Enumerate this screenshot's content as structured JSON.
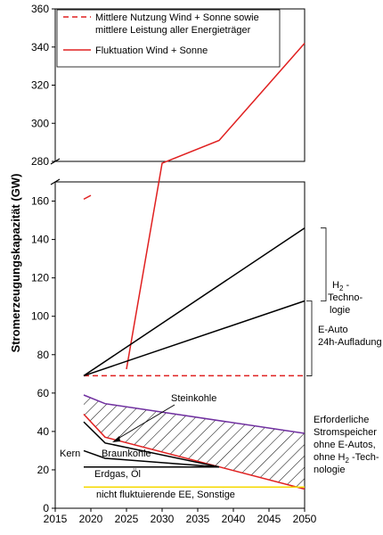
{
  "chart_data": {
    "type": "line",
    "xlabel": "",
    "ylabel": "Stromerzeugungskapazität  (GW)",
    "xlim": [
      2015,
      2050
    ],
    "x_ticks": [
      "2015",
      "2020",
      "2025",
      "2030",
      "2035",
      "2040",
      "2045",
      "2050"
    ],
    "ylim_lower": [
      0,
      170
    ],
    "ylim_upper": [
      280,
      360
    ],
    "y_ticks_lower": [
      "0",
      "20",
      "40",
      "60",
      "80",
      "100",
      "120",
      "140",
      "160"
    ],
    "y_ticks_upper": [
      "280",
      "300",
      "320",
      "340",
      "360"
    ],
    "axis_break": true,
    "grid": false,
    "legend_position": "top-left",
    "legend": [
      {
        "label_line1": "Mittlere Nutzung Wind + Sonne sowie",
        "label_line2": "mittlere Leistung aller Energieträger",
        "style": "dashed",
        "color": "#e02020"
      },
      {
        "label_line1": "Fluktuation Wind + Sonne",
        "label_line2": "",
        "style": "solid",
        "color": "#e02020"
      }
    ],
    "series": [
      {
        "name": "Fluktuation Wind + Sonne",
        "color": "#e02020",
        "style": "solid",
        "width": 1.5,
        "points": [
          [
            2019,
            161
          ],
          [
            2020,
            163
          ],
          [
            2025,
            171
          ],
          [
            2030,
            279
          ],
          [
            2038,
            291
          ],
          [
            2050,
            342
          ]
        ]
      },
      {
        "name": "Mittlere Nutzung Wind + Sonne sowie mittlere Leistung aller Energieträger",
        "color": "#e02020",
        "style": "dashed",
        "width": 1.5,
        "points": [
          [
            2019,
            69
          ],
          [
            2050,
            69
          ]
        ]
      },
      {
        "name": "",
        "color": "#000000",
        "style": "solid",
        "width": 1.5,
        "points": [
          [
            2019,
            69
          ],
          [
            2050,
            146
          ]
        ]
      },
      {
        "name": "",
        "color": "#000000",
        "style": "solid",
        "width": 1.5,
        "points": [
          [
            2019,
            69
          ],
          [
            2050,
            108
          ]
        ]
      },
      {
        "name": "",
        "color": "#7030a0",
        "style": "solid",
        "width": 1.5,
        "points": [
          [
            2019,
            59
          ],
          [
            2022,
            54.5
          ],
          [
            2050,
            39
          ]
        ]
      },
      {
        "name": "",
        "color": "#e02020",
        "style": "solid",
        "width": 1.5,
        "points": [
          [
            2019,
            49
          ],
          [
            2022,
            37
          ],
          [
            2050,
            10
          ]
        ]
      },
      {
        "name": "",
        "color": "#000000",
        "style": "solid",
        "width": 1.5,
        "points": [
          [
            2019,
            45
          ],
          [
            2022,
            34
          ],
          [
            2038,
            21.5
          ]
        ]
      },
      {
        "name": "",
        "color": "#000000",
        "style": "solid",
        "width": 1.5,
        "points": [
          [
            2019,
            30
          ],
          [
            2022,
            26
          ],
          [
            2038,
            21.5
          ]
        ]
      },
      {
        "name": "",
        "color": "#000000",
        "style": "solid",
        "width": 1.5,
        "points": [
          [
            2019,
            21.5
          ],
          [
            2038,
            21.5
          ]
        ]
      },
      {
        "name": "",
        "color": "#f5d800",
        "style": "solid",
        "width": 1.5,
        "points": [
          [
            2019,
            11
          ],
          [
            2050,
            11
          ]
        ]
      }
    ],
    "hatched_area": {
      "top": [
        [
          2019,
          59
        ],
        [
          2022,
          54.5
        ],
        [
          2050,
          39
        ]
      ],
      "bottom": [
        [
          2019,
          49
        ],
        [
          2022,
          37
        ],
        [
          2050,
          10
        ]
      ]
    },
    "annotations": {
      "steinkohle": "Steinkohle",
      "braunkohle": "Braunkohle",
      "kern": "Kern",
      "erdgas": "Erdgas, Öl",
      "ee": "nicht fluktuierende  EE, Sonstige",
      "h2_line1": "H",
      "h2_sub": "2",
      "h2_line1_rest": " -",
      "h2_line2": "Techno-",
      "h2_line3": "logie",
      "eauto_line1": "E-Auto",
      "eauto_line2": "24h-Aufladung",
      "speicher_line1": "Erforderliche",
      "speicher_line2": "Stromspeicher",
      "speicher_line3": "ohne E-Autos,",
      "speicher_line4a": "ohne H",
      "speicher_line4sub": "2",
      "speicher_line4b": " -Tech-",
      "speicher_line5": "nologie"
    },
    "brackets": [
      {
        "name": "h2",
        "from": 108,
        "to": 146
      },
      {
        "name": "eauto",
        "from": 69,
        "to": 108
      }
    ]
  }
}
